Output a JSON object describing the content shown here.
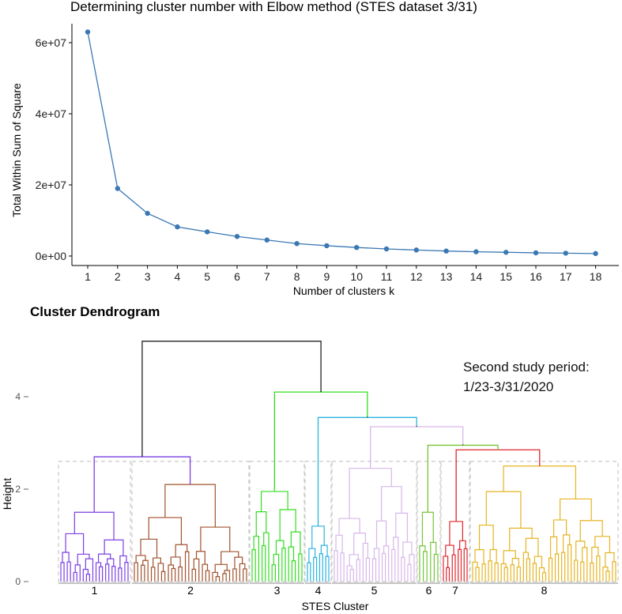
{
  "chart_data": [
    {
      "type": "line",
      "title": "Determining cluster number with Elbow method (STES dataset 3/31)",
      "xlabel": "Number of clusters k",
      "ylabel": "Total Within Sum of Square",
      "x": [
        1,
        2,
        3,
        4,
        5,
        6,
        7,
        8,
        9,
        10,
        11,
        12,
        13,
        14,
        15,
        16,
        17,
        18
      ],
      "y": [
        63000000,
        19000000,
        12000000,
        8200000,
        6800000,
        5500000,
        4500000,
        3500000,
        2900000,
        2400000,
        2000000,
        1700000,
        1400000,
        1200000,
        1050000,
        900000,
        800000,
        700000
      ],
      "ylim": [
        0,
        65000000
      ],
      "yticks": [
        0,
        20000000,
        40000000,
        60000000
      ],
      "yticklabels": [
        "0e+00",
        "2e+07",
        "4e+07",
        "6e+07"
      ],
      "color": "#3A78B3"
    },
    {
      "type": "dendrogram",
      "title": "Cluster Dendrogram",
      "ylabel": "Height",
      "xlabel": "STES Cluster",
      "yticks": [
        0,
        2,
        4
      ],
      "ylim": [
        0,
        5.2
      ],
      "cut_height": 2.6,
      "annotation": [
        "Second study period:",
        "1/23-3/31/2020"
      ],
      "clusters": [
        {
          "label": "1",
          "color": "#7B3FE4",
          "height": 1.5
        },
        {
          "label": "2",
          "color": "#A0522D",
          "height": 2.1
        },
        {
          "label": "3",
          "color": "#33DD22",
          "height": 1.95
        },
        {
          "label": "4",
          "color": "#2BB3E0",
          "height": 1.2
        },
        {
          "label": "5",
          "color": "#D7B7EA",
          "height": 2.45
        },
        {
          "label": "6",
          "color": "#77C43A",
          "height": 1.5
        },
        {
          "label": "7",
          "color": "#E0262C",
          "height": 1.3
        },
        {
          "label": "8",
          "color": "#E6B422",
          "height": 2.5
        }
      ],
      "merges": [
        {
          "name": "1+2",
          "height": 2.7
        },
        {
          "name": "7+8",
          "height": 2.85
        },
        {
          "name": "6+(7,8)",
          "height": 2.95
        },
        {
          "name": "5+(6,7,8)",
          "height": 3.35
        },
        {
          "name": "4+(5..8)",
          "height": 3.55
        },
        {
          "name": "3+(4..8)",
          "height": 4.1
        },
        {
          "name": "root",
          "height": 5.2
        }
      ]
    }
  ]
}
